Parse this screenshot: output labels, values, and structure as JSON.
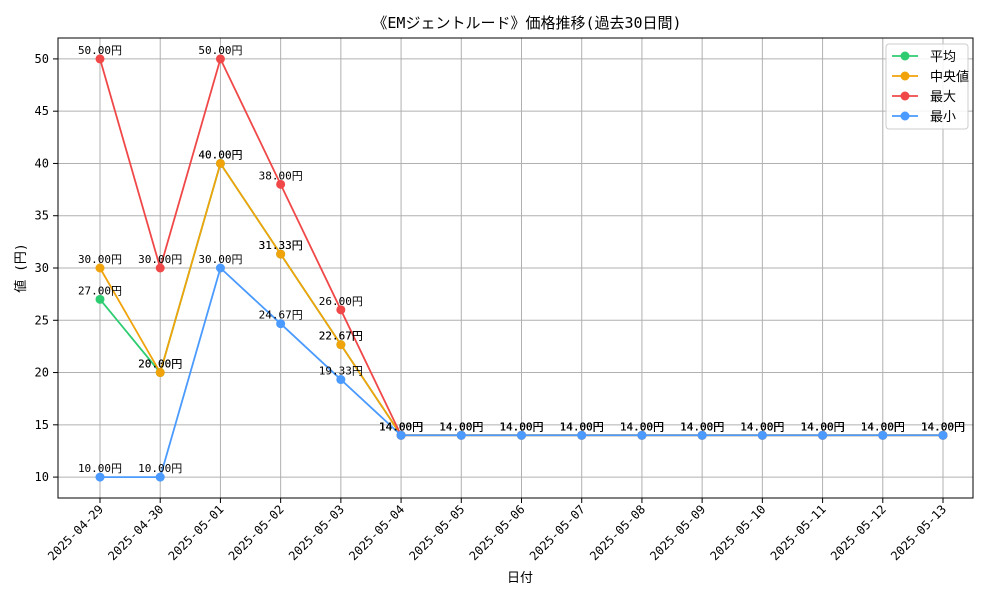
{
  "chart_data": {
    "type": "line",
    "title": "《EMジェントルード》価格推移(過去30日間)",
    "xlabel": "日付",
    "ylabel": "値 (円)",
    "ylim": [
      8,
      52
    ],
    "yticks": [
      10,
      15,
      20,
      25,
      30,
      35,
      40,
      45,
      50
    ],
    "grid": true,
    "legend_position": "top-right",
    "label_suffix": "円",
    "categories": [
      "2025-04-29",
      "2025-04-30",
      "2025-05-01",
      "2025-05-02",
      "2025-05-03",
      "2025-05-04",
      "2025-05-05",
      "2025-05-06",
      "2025-05-07",
      "2025-05-08",
      "2025-05-09",
      "2025-05-10",
      "2025-05-11",
      "2025-05-12",
      "2025-05-13"
    ],
    "series": [
      {
        "name": "平均",
        "color": "#2ecc71",
        "values": [
          27.0,
          20.0,
          40.0,
          31.33,
          22.67,
          14.0,
          14.0,
          14.0,
          14.0,
          14.0,
          14.0,
          14.0,
          14.0,
          14.0,
          14.0
        ]
      },
      {
        "name": "中央値",
        "color": "#f0a30a",
        "values": [
          30.0,
          20.0,
          40.0,
          31.33,
          22.67,
          14.0,
          14.0,
          14.0,
          14.0,
          14.0,
          14.0,
          14.0,
          14.0,
          14.0,
          14.0
        ]
      },
      {
        "name": "最大",
        "color": "#f04848",
        "values": [
          50.0,
          30.0,
          50.0,
          38.0,
          26.0,
          14.0,
          14.0,
          14.0,
          14.0,
          14.0,
          14.0,
          14.0,
          14.0,
          14.0,
          14.0
        ]
      },
      {
        "name": "最小",
        "color": "#4a9aff",
        "values": [
          10.0,
          10.0,
          30.0,
          24.67,
          19.33,
          14.0,
          14.0,
          14.0,
          14.0,
          14.0,
          14.0,
          14.0,
          14.0,
          14.0,
          14.0
        ]
      }
    ]
  }
}
